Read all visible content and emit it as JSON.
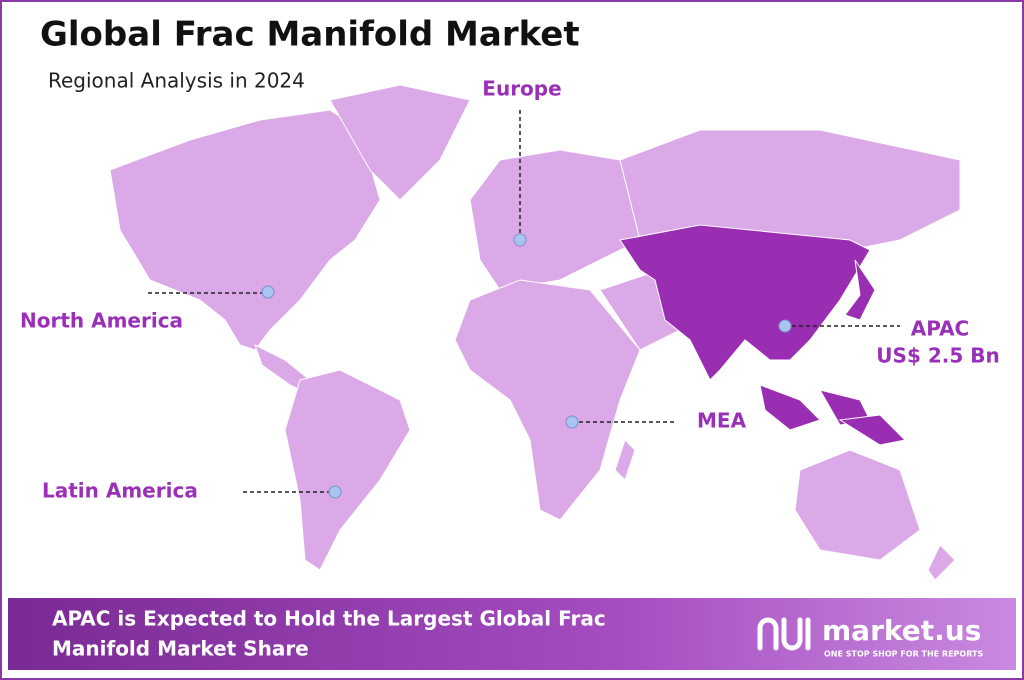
{
  "header": {
    "title": "Global Frac Manifold Market",
    "subtitle": "Regional Analysis in 2024"
  },
  "regions": [
    {
      "label": "Europe"
    },
    {
      "label": "North America"
    },
    {
      "label": "APAC",
      "value_label": "US$ 2.5 Bn"
    },
    {
      "label": "MEA"
    },
    {
      "label": "Latin America"
    }
  ],
  "footer": {
    "text": [
      "APAC is Expected to Hold the Largest Global Frac",
      "Manifold Market Share"
    ],
    "brand": "market.us",
    "tagline": "ONE STOP SHOP FOR THE REPORTS"
  }
}
